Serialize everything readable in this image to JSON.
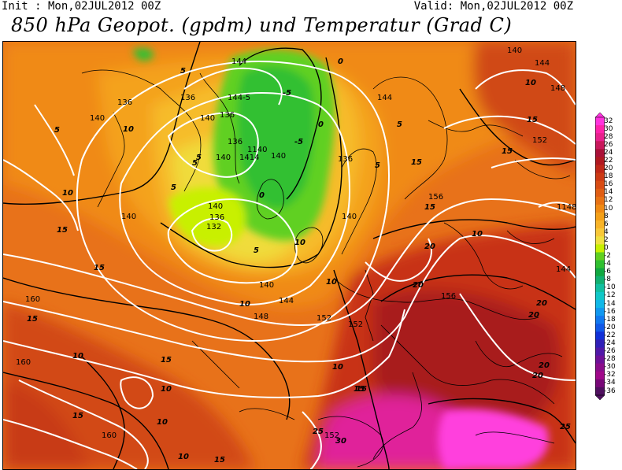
{
  "header": {
    "init": "Init : Mon,02JUL2012 00Z",
    "valid": "Valid: Mon,02JUL2012 00Z",
    "title": "850 hPa Geopot. (gpdm) und Temperatur (Grad C)"
  },
  "colorbar": {
    "labels": [
      "32",
      "30",
      "28",
      "26",
      "24",
      "22",
      "20",
      "18",
      "16",
      "14",
      "12",
      "10",
      "8",
      "6",
      "4",
      "2",
      "0",
      "-2",
      "-4",
      "-6",
      "-8",
      "-10",
      "-12",
      "-14",
      "-16",
      "-18",
      "-20",
      "-22",
      "-24",
      "-26",
      "-28",
      "-30",
      "-32",
      "-34",
      "-36"
    ],
    "colors": [
      "#ff33dd",
      "#ff22aa",
      "#e8208c",
      "#c8185c",
      "#aa1038",
      "#b01820",
      "#c02818",
      "#cc3a14",
      "#d84c14",
      "#e05e14",
      "#e87214",
      "#f08a14",
      "#f4a018",
      "#f8b428",
      "#f8c838",
      "#f0e040",
      "#c8f000",
      "#60d020",
      "#30c030",
      "#10a840",
      "#10b070",
      "#10c0a0",
      "#10c8c8",
      "#10b8e8",
      "#1098f0",
      "#1078f0",
      "#1058e8",
      "#1030d8",
      "#3020b8",
      "#5018a8",
      "#6e1098",
      "#8a0c8a",
      "#a0088a",
      "#780878",
      "#501060"
    ]
  },
  "map_labels": {
    "geopotential": [
      {
        "text": "144"
      },
      {
        "text": "136"
      },
      {
        "text": "144-5"
      },
      {
        "text": "136"
      },
      {
        "text": "136"
      },
      {
        "text": "140"
      },
      {
        "text": "136"
      },
      {
        "text": "1140"
      },
      {
        "text": "1414"
      },
      {
        "text": "140"
      },
      {
        "text": "140"
      },
      {
        "text": "136"
      },
      {
        "text": "140"
      },
      {
        "text": "140"
      },
      {
        "text": "140"
      },
      {
        "text": "136"
      },
      {
        "text": "132"
      },
      {
        "text": "140"
      },
      {
        "text": "140"
      },
      {
        "text": "144"
      },
      {
        "text": "148"
      },
      {
        "text": "152"
      },
      {
        "text": "152"
      },
      {
        "text": "156"
      },
      {
        "text": "156"
      },
      {
        "text": "160"
      },
      {
        "text": "160"
      },
      {
        "text": "160"
      },
      {
        "text": "152"
      },
      {
        "text": "140"
      },
      {
        "text": "144"
      },
      {
        "text": "148"
      },
      {
        "text": "152"
      },
      {
        "text": "1148"
      },
      {
        "text": "144"
      },
      {
        "text": "144"
      }
    ],
    "temperature": [
      {
        "text": "5"
      },
      {
        "text": "10"
      },
      {
        "text": "5"
      },
      {
        "text": "10"
      },
      {
        "text": "15"
      },
      {
        "text": "15"
      },
      {
        "text": "15"
      },
      {
        "text": "15"
      },
      {
        "text": "10"
      },
      {
        "text": "10"
      },
      {
        "text": "15"
      },
      {
        "text": "10"
      },
      {
        "text": "15"
      },
      {
        "text": "10"
      },
      {
        "text": "10"
      },
      {
        "text": "15"
      },
      {
        "text": "15"
      },
      {
        "text": "10"
      },
      {
        "text": "20"
      },
      {
        "text": "20"
      },
      {
        "text": "20"
      },
      {
        "text": "20"
      },
      {
        "text": "20"
      },
      {
        "text": "20"
      },
      {
        "text": "25"
      },
      {
        "text": "30"
      },
      {
        "text": "25"
      },
      {
        "text": "10"
      },
      {
        "text": "15"
      },
      {
        "text": "15"
      },
      {
        "text": "10"
      },
      {
        "text": "15"
      },
      {
        "text": "15"
      },
      {
        "text": "-5"
      },
      {
        "text": "-5"
      },
      {
        "text": "0"
      },
      {
        "text": "5"
      },
      {
        "text": "0"
      },
      {
        "text": "5"
      },
      {
        "text": "10"
      },
      {
        "text": "5"
      },
      {
        "text": "10"
      },
      {
        "text": "5"
      },
      {
        "text": "5"
      },
      {
        "text": "5"
      },
      {
        "text": "0"
      }
    ]
  }
}
